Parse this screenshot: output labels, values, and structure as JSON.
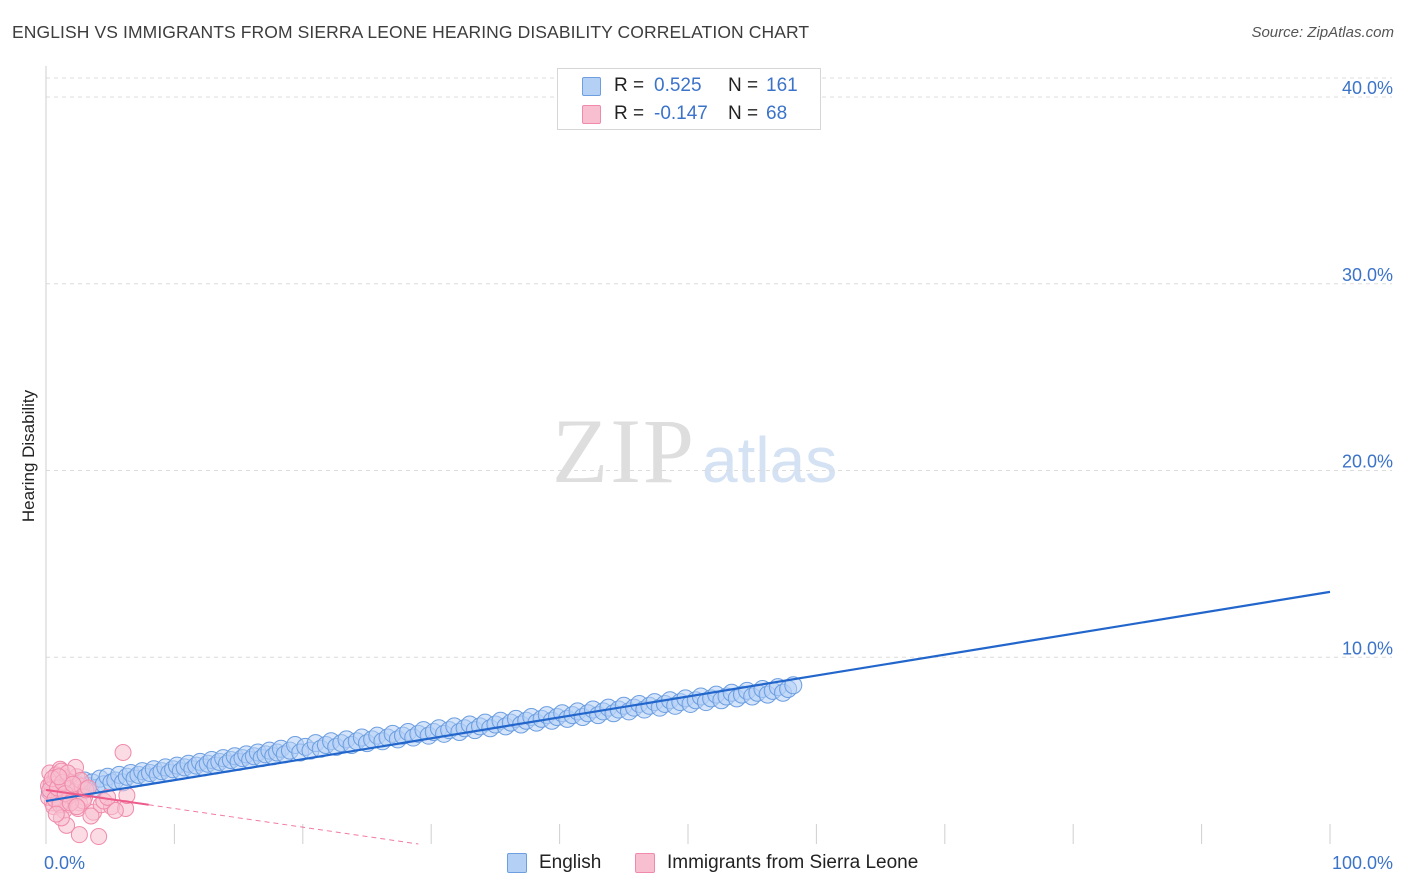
{
  "title": "ENGLISH VS IMMIGRANTS FROM SIERRA LEONE HEARING DISABILITY CORRELATION CHART",
  "source": "Source: ZipAtlas.com",
  "watermark": {
    "zip": "ZIP",
    "atlas": "atlas"
  },
  "legend": {
    "rows": [
      {
        "r_label": "R =",
        "r_value": "0.525",
        "n_label": "N =",
        "n_value": "161"
      },
      {
        "r_label": "R =",
        "r_value": "-0.147",
        "n_label": "N =",
        "n_value": "68"
      }
    ]
  },
  "colors": {
    "english_fill": "#b5d0f5",
    "english_stroke": "#6c9ee0",
    "english_line": "#2266cc",
    "sierra_fill": "#f8bfd0",
    "sierra_stroke": "#f08aaa",
    "sierra_line": "#ee5a8a",
    "tick_label": "#3b73c9",
    "grid": "#dcdcdc"
  },
  "chart_data": {
    "type": "scatter",
    "title": "ENGLISH VS IMMIGRANTS FROM SIERRA LEONE HEARING DISABILITY CORRELATION CHART",
    "xlabel": "",
    "ylabel": "Hearing Disability",
    "xlim": [
      0,
      100
    ],
    "ylim": [
      0,
      42
    ],
    "x_tick_labels": [
      "0.0%",
      "100.0%"
    ],
    "y_ticks": [
      10,
      20,
      30,
      40
    ],
    "y_tick_labels": [
      "10.0%",
      "20.0%",
      "30.0%",
      "40.0%"
    ],
    "grid": "horizontal dashed",
    "legend_position": "bottom-center",
    "series": [
      {
        "name": "English",
        "r": 0.525,
        "n": 161,
        "trend": {
          "x": [
            0,
            100
          ],
          "y": [
            2.3,
            13.5
          ]
        },
        "points": [
          [
            0.3,
            2.8
          ],
          [
            0.6,
            3.0
          ],
          [
            0.9,
            2.6
          ],
          [
            1.2,
            3.1
          ],
          [
            1.5,
            2.9
          ],
          [
            1.8,
            3.3
          ],
          [
            2.1,
            3.0
          ],
          [
            2.4,
            3.2
          ],
          [
            2.7,
            2.9
          ],
          [
            3.0,
            3.4
          ],
          [
            3.3,
            3.1
          ],
          [
            3.6,
            3.3
          ],
          [
            3.9,
            3.0
          ],
          [
            4.2,
            3.5
          ],
          [
            4.5,
            3.2
          ],
          [
            4.8,
            3.6
          ],
          [
            5.1,
            3.3
          ],
          [
            5.4,
            3.4
          ],
          [
            5.7,
            3.7
          ],
          [
            6.0,
            3.3
          ],
          [
            6.3,
            3.6
          ],
          [
            6.6,
            3.8
          ],
          [
            6.9,
            3.5
          ],
          [
            7.2,
            3.7
          ],
          [
            7.5,
            3.9
          ],
          [
            7.8,
            3.6
          ],
          [
            8.1,
            3.8
          ],
          [
            8.4,
            4.0
          ],
          [
            8.7,
            3.7
          ],
          [
            9.0,
            3.9
          ],
          [
            9.3,
            4.1
          ],
          [
            9.6,
            3.8
          ],
          [
            9.9,
            4.0
          ],
          [
            10.2,
            4.2
          ],
          [
            10.5,
            3.9
          ],
          [
            10.8,
            4.1
          ],
          [
            11.1,
            4.3
          ],
          [
            11.4,
            4.0
          ],
          [
            11.7,
            4.2
          ],
          [
            12.0,
            4.4
          ],
          [
            12.3,
            4.1
          ],
          [
            12.6,
            4.3
          ],
          [
            12.9,
            4.5
          ],
          [
            13.2,
            4.2
          ],
          [
            13.5,
            4.4
          ],
          [
            13.8,
            4.6
          ],
          [
            14.1,
            4.3
          ],
          [
            14.4,
            4.5
          ],
          [
            14.7,
            4.7
          ],
          [
            15.0,
            4.4
          ],
          [
            15.3,
            4.6
          ],
          [
            15.6,
            4.8
          ],
          [
            15.9,
            4.5
          ],
          [
            16.2,
            4.7
          ],
          [
            16.5,
            4.9
          ],
          [
            16.8,
            4.6
          ],
          [
            17.1,
            4.8
          ],
          [
            17.4,
            5.0
          ],
          [
            17.7,
            4.7
          ],
          [
            18.0,
            4.9
          ],
          [
            18.3,
            5.1
          ],
          [
            18.6,
            4.8
          ],
          [
            19.0,
            5.0
          ],
          [
            19.4,
            5.3
          ],
          [
            19.8,
            4.9
          ],
          [
            20.2,
            5.2
          ],
          [
            20.6,
            5.0
          ],
          [
            21.0,
            5.4
          ],
          [
            21.4,
            5.1
          ],
          [
            21.8,
            5.3
          ],
          [
            22.2,
            5.5
          ],
          [
            22.6,
            5.2
          ],
          [
            23.0,
            5.4
          ],
          [
            23.4,
            5.6
          ],
          [
            23.8,
            5.3
          ],
          [
            24.2,
            5.5
          ],
          [
            24.6,
            5.7
          ],
          [
            25.0,
            5.4
          ],
          [
            25.4,
            5.6
          ],
          [
            25.8,
            5.8
          ],
          [
            26.2,
            5.5
          ],
          [
            26.6,
            5.7
          ],
          [
            27.0,
            5.9
          ],
          [
            27.4,
            5.6
          ],
          [
            27.8,
            5.8
          ],
          [
            28.2,
            6.0
          ],
          [
            28.6,
            5.7
          ],
          [
            29.0,
            5.9
          ],
          [
            29.4,
            6.1
          ],
          [
            29.8,
            5.8
          ],
          [
            30.2,
            6.0
          ],
          [
            30.6,
            6.2
          ],
          [
            31.0,
            5.9
          ],
          [
            31.4,
            6.1
          ],
          [
            31.8,
            6.3
          ],
          [
            32.2,
            6.0
          ],
          [
            32.6,
            6.2
          ],
          [
            33.0,
            6.4
          ],
          [
            33.4,
            6.1
          ],
          [
            33.8,
            6.3
          ],
          [
            34.2,
            6.5
          ],
          [
            34.6,
            6.2
          ],
          [
            35.0,
            6.4
          ],
          [
            35.4,
            6.6
          ],
          [
            35.8,
            6.3
          ],
          [
            36.2,
            6.5
          ],
          [
            36.6,
            6.7
          ],
          [
            37.0,
            6.4
          ],
          [
            37.4,
            6.6
          ],
          [
            37.8,
            6.8
          ],
          [
            38.2,
            6.5
          ],
          [
            38.6,
            6.7
          ],
          [
            39.0,
            6.9
          ],
          [
            39.4,
            6.6
          ],
          [
            39.8,
            6.8
          ],
          [
            40.2,
            7.0
          ],
          [
            40.6,
            6.7
          ],
          [
            41.0,
            6.9
          ],
          [
            41.4,
            7.1
          ],
          [
            41.8,
            6.8
          ],
          [
            42.2,
            7.0
          ],
          [
            42.6,
            7.2
          ],
          [
            43.0,
            6.9
          ],
          [
            43.4,
            7.1
          ],
          [
            43.8,
            7.3
          ],
          [
            44.2,
            7.0
          ],
          [
            44.6,
            7.2
          ],
          [
            45.0,
            7.4
          ],
          [
            45.4,
            7.1
          ],
          [
            45.8,
            7.3
          ],
          [
            46.2,
            7.5
          ],
          [
            46.6,
            7.2
          ],
          [
            47.0,
            7.4
          ],
          [
            47.4,
            7.6
          ],
          [
            47.8,
            7.3
          ],
          [
            48.2,
            7.5
          ],
          [
            48.6,
            7.7
          ],
          [
            49.0,
            7.4
          ],
          [
            49.4,
            7.6
          ],
          [
            49.8,
            7.8
          ],
          [
            50.2,
            7.5
          ],
          [
            50.6,
            7.7
          ],
          [
            51.0,
            7.9
          ],
          [
            51.4,
            7.6
          ],
          [
            51.8,
            7.8
          ],
          [
            52.2,
            8.0
          ],
          [
            52.6,
            7.7
          ],
          [
            53.0,
            7.9
          ],
          [
            53.4,
            8.1
          ],
          [
            53.8,
            7.8
          ],
          [
            54.2,
            8.0
          ],
          [
            54.6,
            8.2
          ],
          [
            55.0,
            7.9
          ],
          [
            55.4,
            8.1
          ],
          [
            55.8,
            8.3
          ],
          [
            56.2,
            8.0
          ],
          [
            56.6,
            8.2
          ],
          [
            57.0,
            8.4
          ],
          [
            57.4,
            8.1
          ],
          [
            57.8,
            8.3
          ],
          [
            58.2,
            8.5
          ]
        ]
      },
      {
        "name": "Immigrants from Sierra Leone",
        "r": -0.147,
        "n": 68,
        "trend": {
          "x": [
            0,
            8
          ],
          "y": [
            2.9,
            2.1
          ]
        },
        "points": [
          [
            0.2,
            3.1
          ],
          [
            0.4,
            2.7
          ],
          [
            0.6,
            3.4
          ],
          [
            0.8,
            2.5
          ],
          [
            1.0,
            3.0
          ],
          [
            1.2,
            2.8
          ],
          [
            1.4,
            3.6
          ],
          [
            1.6,
            2.4
          ],
          [
            1.8,
            3.2
          ],
          [
            2.0,
            2.9
          ],
          [
            0.3,
            3.8
          ],
          [
            0.5,
            2.2
          ],
          [
            0.7,
            3.3
          ],
          [
            0.9,
            2.6
          ],
          [
            1.1,
            4.0
          ],
          [
            1.3,
            2.3
          ],
          [
            1.5,
            3.5
          ],
          [
            1.7,
            2.1
          ],
          [
            1.9,
            3.1
          ],
          [
            2.1,
            2.7
          ],
          [
            0.2,
            2.5
          ],
          [
            0.4,
            3.2
          ],
          [
            0.6,
            2.0
          ],
          [
            0.8,
            3.7
          ],
          [
            1.0,
            2.4
          ],
          [
            1.2,
            3.9
          ],
          [
            1.4,
            1.8
          ],
          [
            1.6,
            3.0
          ],
          [
            1.8,
            2.6
          ],
          [
            2.0,
            3.3
          ],
          [
            2.2,
            2.8
          ],
          [
            2.4,
            3.6
          ],
          [
            2.6,
            2.2
          ],
          [
            2.8,
            3.1
          ],
          [
            3.0,
            2.5
          ],
          [
            2.3,
            4.1
          ],
          [
            2.5,
            1.9
          ],
          [
            2.7,
            3.4
          ],
          [
            2.9,
            2.3
          ],
          [
            3.1,
            2.9
          ],
          [
            0.3,
            2.9
          ],
          [
            0.5,
            3.5
          ],
          [
            0.7,
            2.4
          ],
          [
            0.9,
            3.0
          ],
          [
            1.1,
            2.1
          ],
          [
            1.3,
            3.3
          ],
          [
            1.5,
            2.7
          ],
          [
            1.7,
            3.8
          ],
          [
            1.9,
            2.2
          ],
          [
            2.1,
            3.2
          ],
          [
            1.6,
            1.0
          ],
          [
            2.6,
            0.5
          ],
          [
            4.1,
            0.4
          ],
          [
            3.7,
            1.7
          ],
          [
            4.3,
            2.1
          ],
          [
            5.1,
            2.0
          ],
          [
            6.2,
            1.9
          ],
          [
            6.3,
            2.6
          ],
          [
            6.0,
            4.9
          ],
          [
            5.4,
            1.8
          ],
          [
            4.5,
            2.3
          ],
          [
            3.3,
            3.0
          ],
          [
            3.5,
            1.5
          ],
          [
            4.8,
            2.5
          ],
          [
            1.2,
            1.4
          ],
          [
            0.8,
            1.6
          ],
          [
            2.4,
            2.0
          ],
          [
            1.0,
            3.6
          ]
        ]
      }
    ]
  }
}
